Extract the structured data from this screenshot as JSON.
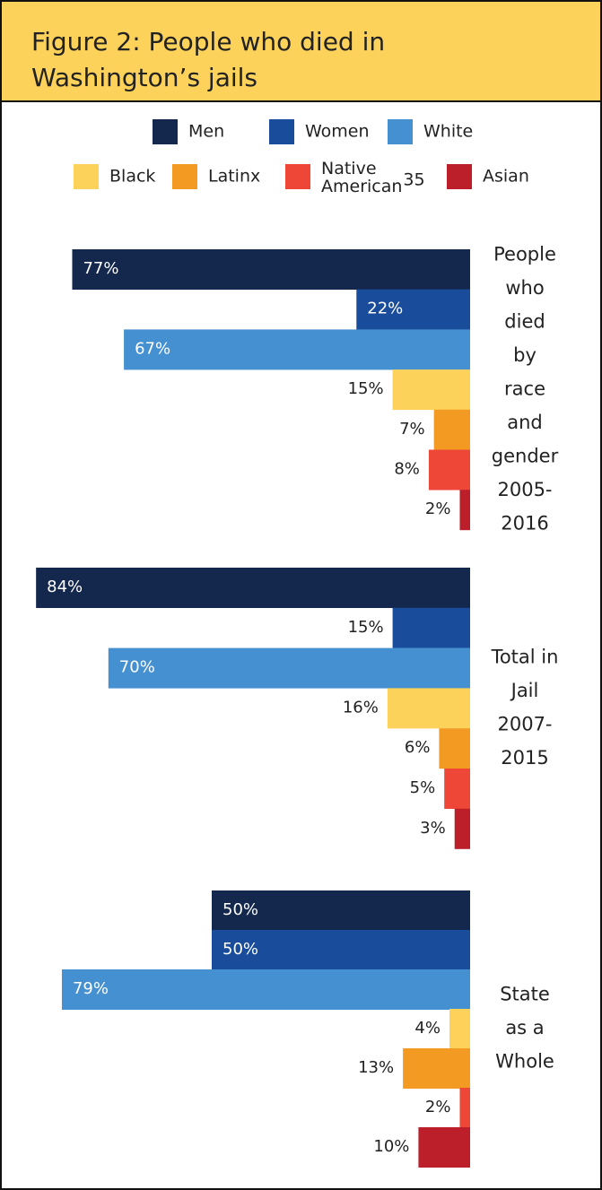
{
  "chart_data": {
    "type": "bar",
    "orientation": "horizontal",
    "title": "Figure 2: People who died in\nWashington’s jails",
    "categories": [
      "People\nwho\ndied\nby\nrace\nand\ngender\n2005-\n2016",
      "Total in\nJail\n2007-\n2015",
      "State\nas a\nWhole"
    ],
    "series": [
      {
        "name": "Men",
        "color": "#14284e",
        "values": [
          77,
          84,
          50
        ],
        "value_labels": [
          "77%",
          "84%",
          "50%"
        ]
      },
      {
        "name": "Women",
        "color": "#1a4c9c",
        "values": [
          22,
          15,
          50
        ],
        "value_labels": [
          "22%",
          "15%",
          "50%"
        ]
      },
      {
        "name": "White",
        "color": "#4590d0",
        "values": [
          67,
          70,
          79
        ],
        "value_labels": [
          "67%",
          "70%",
          "79%"
        ]
      },
      {
        "name": "Black",
        "color": "#fcd25a",
        "values": [
          15,
          16,
          4
        ],
        "value_labels": [
          "15%",
          "16%",
          "4%"
        ]
      },
      {
        "name": "Latinx",
        "color": "#f39a23",
        "values": [
          7,
          6,
          13
        ],
        "value_labels": [
          "7%",
          "6%",
          "13%"
        ]
      },
      {
        "name": "Native\nAmerican",
        "footnote": "35",
        "color": "#ee4637",
        "values": [
          8,
          5,
          2
        ],
        "value_labels": [
          "8%",
          "5%",
          "2%"
        ]
      },
      {
        "name": "Asian",
        "color": "#bc1f2a",
        "values": [
          2,
          3,
          10
        ],
        "value_labels": [
          "2%",
          "3%",
          "10%"
        ]
      }
    ]
  }
}
